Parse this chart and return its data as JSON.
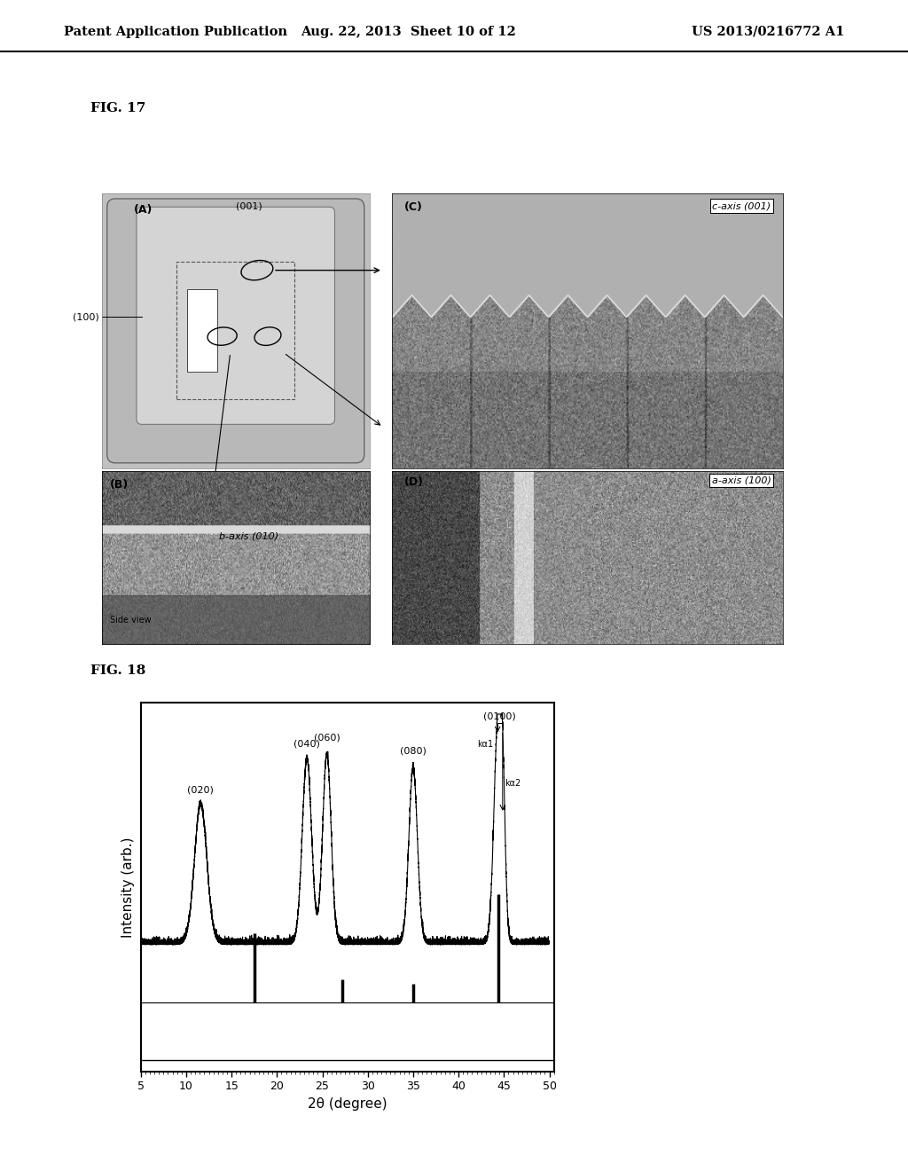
{
  "header_left": "Patent Application Publication",
  "header_center": "Aug. 22, 2013  Sheet 10 of 12",
  "header_right": "US 2013/0216772 A1",
  "fig17_label": "FIG. 17",
  "fig18_label": "FIG. 18",
  "xrd_xlabel": "2θ (degree)",
  "xrd_ylabel": "Intensity (arb.)",
  "bg_color": "#ffffff",
  "panel_A_color": "#c0c0c0",
  "panel_C_color": "#909090",
  "panel_B_color": "#808080",
  "panel_D_color": "#909090"
}
